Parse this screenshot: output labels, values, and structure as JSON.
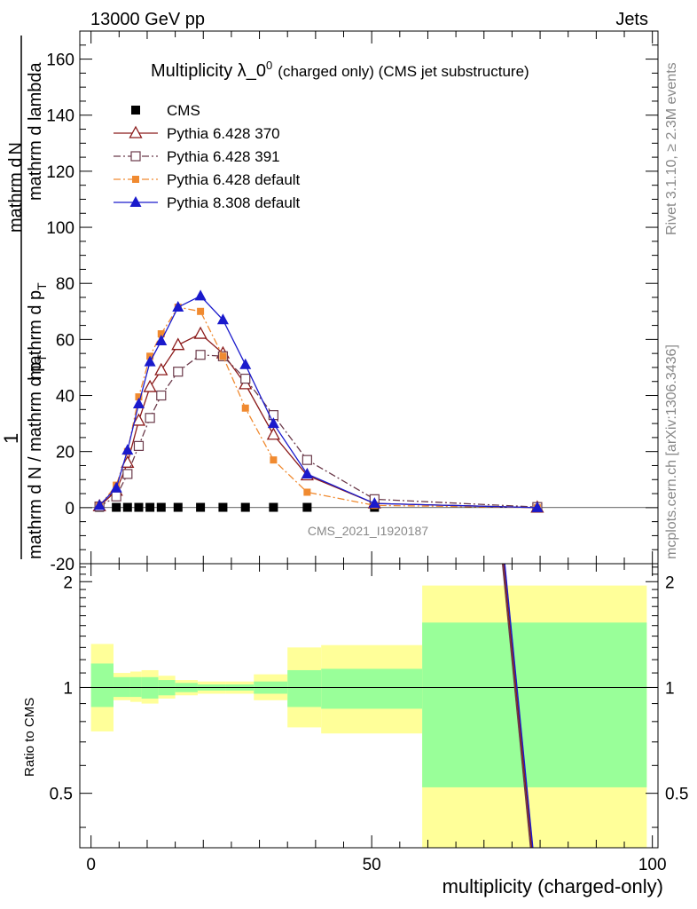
{
  "header": {
    "left": "13000 GeV pp",
    "right": "Jets"
  },
  "side_labels": {
    "rivet": "Rivet 3.1.10, ≥ 2.3M events",
    "mcplots": "mcplots.cern.ch [arXiv:1306.3436]"
  },
  "watermark": "CMS_2021_I1920187",
  "chart_data": [
    {
      "type": "scatter",
      "title_main": "Multiplicity λ_0",
      "title_sup": "0",
      "title_rest": "(charged only) (CMS jet substructure)",
      "ylabel_part1": "mathrm d N / mathrm d p",
      "ylabel_part2": "mathrm d p",
      "ylabel_part3": "mathrm d lambda",
      "ylabel_sub_T": "T",
      "ylabel_numerator_d": "mathrm d",
      "ylabel_numerator_N": "N",
      "ylabel_one": "1",
      "ylabel_denominator": "mathrm d N / mathrm d p",
      "ylabel_denominator_sub": "T",
      "ylabel_full_numerator": "mathrm d",
      "ylabel_lower_part": "mathrm d p",
      "xlim": [
        -2,
        101
      ],
      "ylim": [
        -20,
        170
      ],
      "yticks": [
        -20,
        0,
        20,
        40,
        60,
        80,
        100,
        120,
        140,
        160
      ],
      "legend_position": "top-left",
      "series": [
        {
          "name": "CMS",
          "color": "#000000",
          "marker": "filled-square",
          "line": "none",
          "x": [
            1.5,
            4.5,
            6.5,
            8.5,
            10.5,
            12.5,
            15.5,
            19.5,
            23.5,
            27.5,
            32.5,
            38.5,
            50.5,
            79.5
          ],
          "y": [
            0.1,
            0.1,
            0.1,
            0.1,
            0.1,
            0.1,
            0.1,
            0.1,
            0.1,
            0.1,
            0.1,
            0.1,
            0.1,
            0.1
          ]
        },
        {
          "name": "Pythia 6.428 370",
          "color": "#8b1a1a",
          "marker": "open-triangle",
          "line": "solid",
          "x": [
            1.5,
            4.5,
            6.5,
            8.5,
            10.5,
            12.5,
            15.5,
            19.5,
            23.5,
            27.5,
            32.5,
            38.5,
            50.5,
            79.5
          ],
          "y": [
            0.5,
            6,
            16,
            31,
            43,
            49,
            58,
            62,
            55,
            44,
            26,
            11.5,
            1.5,
            0
          ]
        },
        {
          "name": "Pythia 6.428 391",
          "color": "#6b3a4a",
          "marker": "open-square",
          "line": "dashdot",
          "x": [
            1.5,
            4.5,
            6.5,
            8.5,
            10.5,
            12.5,
            15.5,
            19.5,
            23.5,
            27.5,
            32.5,
            38.5,
            50.5,
            79.5
          ],
          "y": [
            0.4,
            4,
            12,
            22,
            32,
            40,
            48.5,
            54.5,
            54,
            46,
            33,
            17,
            3,
            0.2
          ]
        },
        {
          "name": "Pythia 6.428 default",
          "color": "#f08a30",
          "marker": "filled-square-small",
          "line": "dashdot",
          "x": [
            1.5,
            4.5,
            6.5,
            8.5,
            10.5,
            12.5,
            15.5,
            19.5,
            23.5,
            27.5,
            32.5,
            38.5,
            50.5,
            79.5
          ],
          "y": [
            0.6,
            8,
            20,
            39.5,
            54,
            62,
            71.5,
            70,
            54,
            35.5,
            17,
            5.5,
            0.8,
            0
          ]
        },
        {
          "name": "Pythia 8.308 default",
          "color": "#1a1acc",
          "marker": "filled-triangle",
          "line": "solid",
          "x": [
            1.5,
            4.5,
            6.5,
            8.5,
            10.5,
            12.5,
            15.5,
            19.5,
            23.5,
            27.5,
            32.5,
            38.5,
            50.5,
            79.5
          ],
          "y": [
            0.8,
            7,
            20.5,
            37,
            52,
            59.5,
            71.5,
            75.5,
            67,
            51,
            30,
            12,
            1.5,
            0
          ]
        }
      ]
    },
    {
      "type": "area",
      "ylabel": "Ratio to CMS",
      "xlabel": "multiplicity (charged-only)",
      "xlim": [
        -2,
        101
      ],
      "ylim": [
        0.35,
        2.25
      ],
      "yticks": [
        0.5,
        1,
        2
      ],
      "xticks": [
        0,
        50,
        100
      ],
      "bins": [
        {
          "x0": 0,
          "x1": 4,
          "inner": [
            0.88,
            1.17
          ],
          "outer": [
            0.75,
            1.33
          ]
        },
        {
          "x0": 4,
          "x1": 7,
          "inner": [
            0.94,
            1.07
          ],
          "outer": [
            0.92,
            1.1
          ]
        },
        {
          "x0": 7,
          "x1": 9,
          "inner": [
            0.94,
            1.07
          ],
          "outer": [
            0.91,
            1.11
          ]
        },
        {
          "x0": 9,
          "x1": 12,
          "inner": [
            0.93,
            1.07
          ],
          "outer": [
            0.9,
            1.12
          ]
        },
        {
          "x0": 12,
          "x1": 15,
          "inner": [
            0.95,
            1.05
          ],
          "outer": [
            0.93,
            1.08
          ]
        },
        {
          "x0": 15,
          "x1": 19,
          "inner": [
            0.97,
            1.03
          ],
          "outer": [
            0.95,
            1.05
          ]
        },
        {
          "x0": 19,
          "x1": 24,
          "inner": [
            0.98,
            1.02
          ],
          "outer": [
            0.96,
            1.04
          ]
        },
        {
          "x0": 24,
          "x1": 29,
          "inner": [
            0.98,
            1.02
          ],
          "outer": [
            0.96,
            1.04
          ]
        },
        {
          "x0": 29,
          "x1": 35,
          "inner": [
            0.96,
            1.04
          ],
          "outer": [
            0.92,
            1.09
          ]
        },
        {
          "x0": 35,
          "x1": 41,
          "inner": [
            0.88,
            1.12
          ],
          "outer": [
            0.77,
            1.3
          ]
        },
        {
          "x0": 41,
          "x1": 59,
          "inner": [
            0.87,
            1.13
          ],
          "outer": [
            0.74,
            1.32
          ]
        },
        {
          "x0": 59,
          "x1": 99,
          "inner": [
            0.52,
            1.53
          ],
          "outer": [
            0.25,
            1.95
          ]
        }
      ],
      "ratio_lines": [
        {
          "color": "#8b1a1a",
          "x": [
            73.5,
            78.5
          ],
          "y": [
            2.35,
            0.35
          ]
        },
        {
          "color": "#6b3a4a",
          "x": [
            73.3,
            78.3
          ],
          "y": [
            2.35,
            0.35
          ]
        },
        {
          "color": "#1a1acc",
          "x": [
            73.7,
            78.7
          ],
          "y": [
            2.35,
            0.35
          ]
        }
      ]
    }
  ]
}
